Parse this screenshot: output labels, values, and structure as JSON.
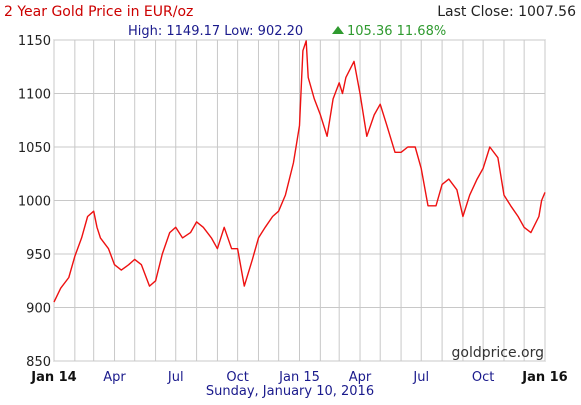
{
  "header": {
    "title": "2 Year Gold Price in EUR/oz",
    "last_close_label": "Last Close: 1007.56",
    "stats_high_low": "High: 1149.17 Low: 902.20",
    "change_icon": "up-triangle-icon",
    "change": "105.36 11.68%"
  },
  "footer": {
    "date": "Sunday, January 10, 2016"
  },
  "watermark": "goldprice.org",
  "colors": {
    "title": "#cc0000",
    "line": "#ee1111",
    "change_up": "#2f9a2f",
    "grid": "#c8c8c8"
  },
  "chart_data": {
    "type": "line",
    "title": "2 Year Gold Price in EUR/oz",
    "xlabel": "",
    "ylabel": "",
    "ylim": [
      850,
      1150
    ],
    "yticks": [
      850,
      900,
      950,
      1000,
      1050,
      1100,
      1150
    ],
    "xtick_labels": [
      "Jan 14",
      "Apr",
      "Jul",
      "Oct",
      "Jan 15",
      "Apr",
      "Jul",
      "Oct",
      "Jan 16"
    ],
    "xlim": [
      "2014-01-10",
      "2016-01-10"
    ],
    "grid": true,
    "series": [
      {
        "x": [
          "2014-01-10",
          "2014-01-20",
          "2014-02-01",
          "2014-02-10",
          "2014-02-20",
          "2014-03-01",
          "2014-03-10",
          "2014-03-15",
          "2014-03-20",
          "2014-04-01",
          "2014-04-10",
          "2014-04-20",
          "2014-05-01",
          "2014-05-10",
          "2014-05-20",
          "2014-06-01",
          "2014-06-10",
          "2014-06-20",
          "2014-07-01",
          "2014-07-10",
          "2014-07-20",
          "2014-08-01",
          "2014-08-10",
          "2014-08-20",
          "2014-09-01",
          "2014-09-10",
          "2014-09-20",
          "2014-10-01",
          "2014-10-10",
          "2014-10-20",
          "2014-11-01",
          "2014-11-10",
          "2014-11-20",
          "2014-12-01",
          "2014-12-10",
          "2014-12-20",
          "2015-01-01",
          "2015-01-10",
          "2015-01-15",
          "2015-01-20",
          "2015-01-23",
          "2015-02-01",
          "2015-02-10",
          "2015-02-20",
          "2015-03-01",
          "2015-03-10",
          "2015-03-15",
          "2015-03-20",
          "2015-04-01",
          "2015-04-10",
          "2015-04-20",
          "2015-05-01",
          "2015-05-10",
          "2015-05-20",
          "2015-06-01",
          "2015-06-10",
          "2015-06-20",
          "2015-07-01",
          "2015-07-10",
          "2015-07-20",
          "2015-08-01",
          "2015-08-10",
          "2015-08-20",
          "2015-09-01",
          "2015-09-10",
          "2015-09-20",
          "2015-10-01",
          "2015-10-10",
          "2015-10-20",
          "2015-11-01",
          "2015-11-10",
          "2015-11-20",
          "2015-12-01",
          "2015-12-10",
          "2015-12-20",
          "2016-01-01",
          "2016-01-05",
          "2016-01-10"
        ],
        "values": [
          905,
          918,
          928,
          948,
          965,
          985,
          990,
          975,
          965,
          955,
          940,
          935,
          940,
          945,
          940,
          920,
          925,
          950,
          970,
          975,
          965,
          970,
          980,
          975,
          965,
          955,
          975,
          955,
          955,
          920,
          945,
          965,
          975,
          985,
          990,
          1005,
          1035,
          1070,
          1140,
          1149.17,
          1115,
          1095,
          1080,
          1060,
          1095,
          1110,
          1100,
          1115,
          1130,
          1100,
          1060,
          1080,
          1090,
          1070,
          1045,
          1045,
          1050,
          1050,
          1030,
          995,
          995,
          1015,
          1020,
          1010,
          985,
          1005,
          1020,
          1030,
          1050,
          1040,
          1005,
          995,
          985,
          975,
          970,
          985,
          1000,
          1007.56
        ]
      }
    ]
  }
}
